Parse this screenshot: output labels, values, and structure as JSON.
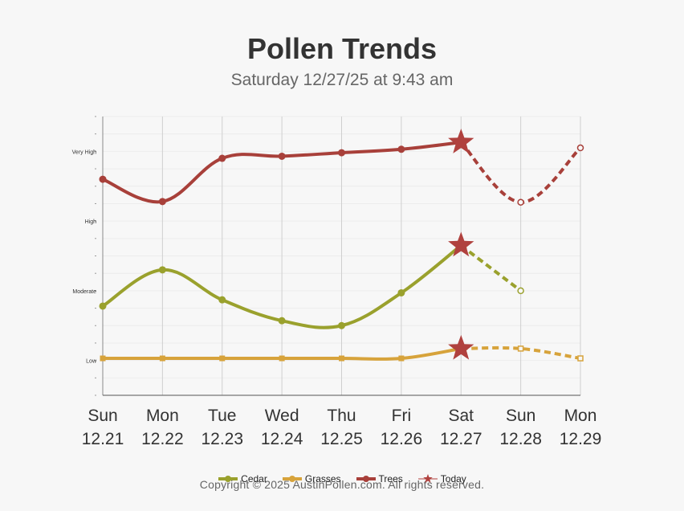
{
  "title": "Pollen Trends",
  "subtitle": "Saturday 12/27/25 at 9:43 am",
  "copyright": "Copyright © 2025 AustinPollen.com.  All rights reserved.",
  "chart_data": {
    "type": "line",
    "title": "Pollen Trends",
    "subtitle": "Saturday 12/27/25 at 9:43 am",
    "x_days": [
      "Sun",
      "Mon",
      "Tue",
      "Wed",
      "Thu",
      "Fri",
      "Sat",
      "Sun",
      "Mon"
    ],
    "x_dates": [
      "12.21",
      "12.22",
      "12.23",
      "12.24",
      "12.25",
      "12.26",
      "12.27",
      "12.28",
      "12.29"
    ],
    "y_labels": [
      {
        "label": "Low",
        "value": 1
      },
      {
        "label": "Moderate",
        "value": 2
      },
      {
        "label": "High",
        "value": 3
      },
      {
        "label": "Very High",
        "value": 4
      }
    ],
    "ylim": [
      0.5,
      4.5
    ],
    "today_index": 6,
    "series": [
      {
        "name": "Cedar",
        "color": "#9aa12d",
        "values": [
          1.78,
          2.3,
          1.87,
          1.57,
          1.5,
          1.97,
          2.65,
          null,
          null
        ],
        "forecast": [
          null,
          null,
          null,
          null,
          null,
          null,
          2.65,
          2.0,
          null
        ]
      },
      {
        "name": "Grasses",
        "color": "#d7a33b",
        "values": [
          1.03,
          1.03,
          1.03,
          1.03,
          1.03,
          1.03,
          1.17,
          null,
          null
        ],
        "forecast": [
          null,
          null,
          null,
          null,
          null,
          null,
          1.17,
          1.17,
          1.03
        ]
      },
      {
        "name": "Trees",
        "color": "#a8403a",
        "values": [
          3.6,
          3.28,
          3.9,
          3.93,
          3.98,
          4.03,
          4.13,
          null,
          null
        ],
        "forecast": [
          null,
          null,
          null,
          null,
          null,
          null,
          4.13,
          3.27,
          4.05
        ]
      }
    ],
    "legend": [
      "Cedar",
      "Grasses",
      "Trees",
      "Today"
    ],
    "today_color": "#b0413e"
  }
}
